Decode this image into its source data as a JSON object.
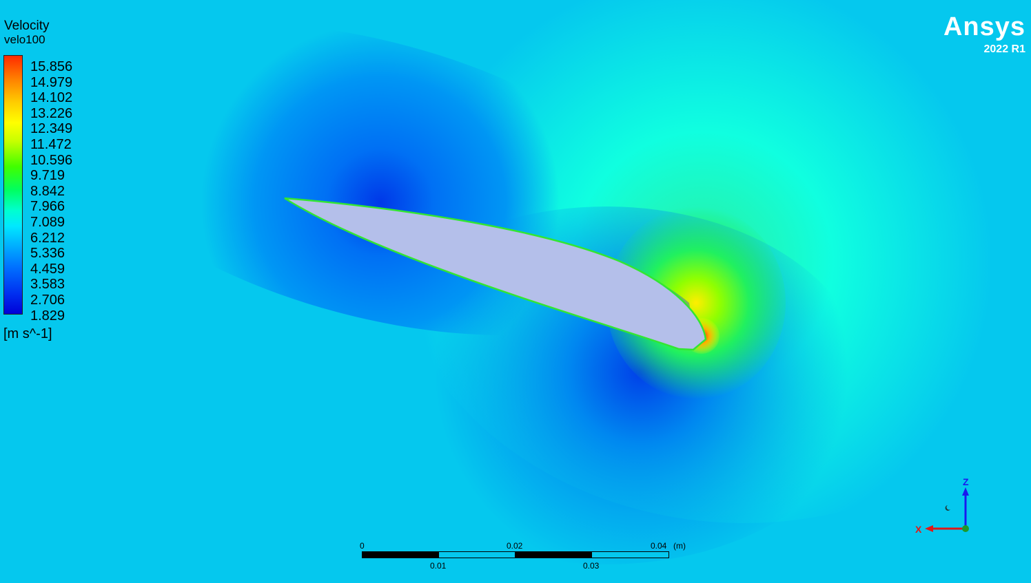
{
  "legend": {
    "title": "Velocity",
    "variable": "velo100",
    "ticks": [
      "15.856",
      "14.979",
      "14.102",
      "13.226",
      "12.349",
      "11.472",
      "10.596",
      "9.719",
      "8.842",
      "7.966",
      "7.089",
      "6.212",
      "5.336",
      "4.459",
      "3.583",
      "2.706",
      "1.829"
    ],
    "units": "[m s^-1]"
  },
  "brand": {
    "name": "Ansys",
    "version": "2022 R1"
  },
  "scale_bar": {
    "top_labels": [
      "0",
      "0.02",
      "0.04"
    ],
    "bottom_labels": [
      "0.01",
      "0.03"
    ],
    "unit": "(m)"
  },
  "axes_triad": {
    "vertical_axis": "Z",
    "horizontal_axis": "X"
  },
  "colors": {
    "background": "#05c8ee",
    "airfoil": "#b4bfea",
    "outline": "#32e632"
  }
}
